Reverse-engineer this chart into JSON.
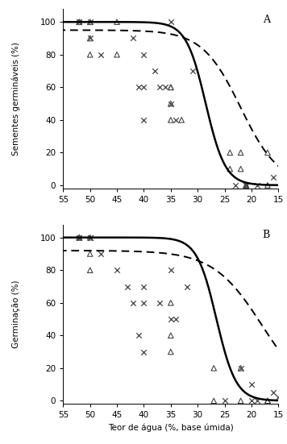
{
  "panel_A": {
    "label": "A",
    "ylabel": "Sementes germináveis (%)",
    "triangle_x": [
      52,
      52,
      50,
      50,
      50,
      45,
      45,
      35,
      35,
      35,
      35,
      33,
      24,
      24,
      22,
      22,
      21,
      21,
      21,
      17,
      17
    ],
    "triangle_y": [
      100,
      100,
      100,
      90,
      80,
      100,
      80,
      60,
      60,
      50,
      40,
      40,
      20,
      10,
      20,
      10,
      0,
      0,
      0,
      20,
      0
    ],
    "cross_x": [
      52,
      52,
      50,
      50,
      48,
      42,
      41,
      40,
      40,
      40,
      38,
      37,
      36,
      35,
      35,
      34,
      31,
      23,
      21,
      21,
      19,
      16
    ],
    "cross_y": [
      100,
      100,
      100,
      90,
      80,
      90,
      60,
      80,
      60,
      40,
      70,
      60,
      60,
      100,
      50,
      40,
      70,
      0,
      0,
      0,
      0,
      5
    ],
    "solid_params": [
      100,
      28.5,
      0.55,
      0
    ],
    "dashed_params": [
      95,
      22,
      0.28,
      0
    ]
  },
  "panel_B": {
    "label": "B",
    "ylabel": "Germinação (%)",
    "triangle_x": [
      52,
      52,
      50,
      50,
      50,
      35,
      35,
      35,
      27,
      27,
      22,
      22,
      17,
      17
    ],
    "triangle_y": [
      100,
      100,
      100,
      90,
      80,
      60,
      40,
      30,
      20,
      0,
      20,
      0,
      0,
      0
    ],
    "cross_x": [
      52,
      52,
      50,
      50,
      48,
      45,
      43,
      42,
      41,
      40,
      40,
      40,
      37,
      35,
      35,
      34,
      32,
      25,
      22,
      20,
      20,
      19,
      16,
      15
    ],
    "cross_y": [
      100,
      100,
      100,
      100,
      90,
      80,
      70,
      60,
      40,
      70,
      60,
      30,
      60,
      80,
      50,
      50,
      70,
      0,
      20,
      10,
      0,
      0,
      5,
      2
    ],
    "solid_params": [
      100,
      26.5,
      0.55,
      0
    ],
    "dashed_params": [
      92,
      18,
      0.22,
      0
    ]
  },
  "xlabel": "Teor de água (%, base úmida)",
  "xlim": [
    55,
    15
  ],
  "ylim": [
    -2,
    110
  ],
  "ylim_display": [
    0,
    100
  ],
  "yticks": [
    0,
    20,
    40,
    60,
    80,
    100
  ],
  "xticks": [
    55,
    50,
    45,
    40,
    35,
    30,
    25,
    20,
    15
  ],
  "background_color": "#ffffff",
  "marker_color": "#444444",
  "solid_lw": 1.8,
  "dashed_lw": 1.4,
  "marker_size": 22
}
